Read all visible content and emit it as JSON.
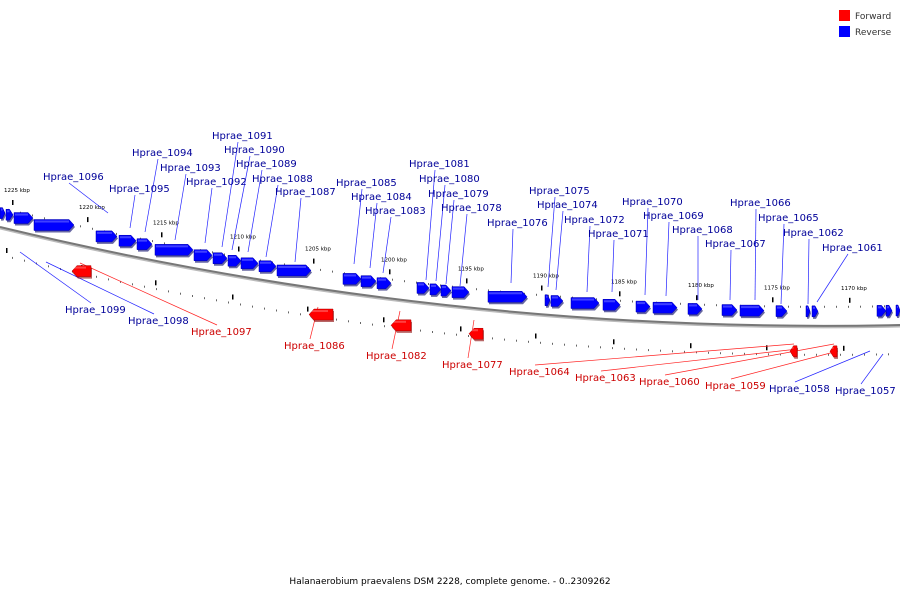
{
  "caption": "Halanaerobium praevalens DSM 2228, complete genome. - 0..2309262",
  "legend": {
    "forward": {
      "label": "Forward",
      "color": "#ff0000"
    },
    "reverse": {
      "label": "Reverse",
      "color": "#0000ff"
    }
  },
  "colors": {
    "forward_text": "#cc0000",
    "reverse_text": "#000099",
    "backbone": "#888888"
  },
  "scale": {
    "unit": "kbp",
    "ticks": [
      "1225 kbp",
      "1220 kbp",
      "1215 kbp",
      "1210 kbp",
      "1205 kbp",
      "1200 kbp",
      "1195 kbp",
      "1190 kbp",
      "1185 kbp",
      "1180 kbp",
      "1175 kbp",
      "1170 kbp"
    ]
  },
  "genes": [
    {
      "name": "Hprae_1099",
      "strand": "reverse"
    },
    {
      "name": "Hprae_1098",
      "strand": "reverse"
    },
    {
      "name": "Hprae_1097",
      "strand": "forward"
    },
    {
      "name": "Hprae_1096",
      "strand": "reverse"
    },
    {
      "name": "Hprae_1095",
      "strand": "reverse"
    },
    {
      "name": "Hprae_1094",
      "strand": "reverse"
    },
    {
      "name": "Hprae_1093",
      "strand": "reverse"
    },
    {
      "name": "Hprae_1092",
      "strand": "reverse"
    },
    {
      "name": "Hprae_1091",
      "strand": "reverse"
    },
    {
      "name": "Hprae_1090",
      "strand": "reverse"
    },
    {
      "name": "Hprae_1089",
      "strand": "reverse"
    },
    {
      "name": "Hprae_1088",
      "strand": "reverse"
    },
    {
      "name": "Hprae_1087",
      "strand": "reverse"
    },
    {
      "name": "Hprae_1086",
      "strand": "forward"
    },
    {
      "name": "Hprae_1085",
      "strand": "reverse"
    },
    {
      "name": "Hprae_1084",
      "strand": "reverse"
    },
    {
      "name": "Hprae_1083",
      "strand": "reverse"
    },
    {
      "name": "Hprae_1082",
      "strand": "forward"
    },
    {
      "name": "Hprae_1081",
      "strand": "reverse"
    },
    {
      "name": "Hprae_1080",
      "strand": "reverse"
    },
    {
      "name": "Hprae_1079",
      "strand": "reverse"
    },
    {
      "name": "Hprae_1078",
      "strand": "reverse"
    },
    {
      "name": "Hprae_1077",
      "strand": "forward"
    },
    {
      "name": "Hprae_1076",
      "strand": "reverse"
    },
    {
      "name": "Hprae_1075",
      "strand": "reverse"
    },
    {
      "name": "Hprae_1074",
      "strand": "reverse"
    },
    {
      "name": "Hprae_1072",
      "strand": "reverse"
    },
    {
      "name": "Hprae_1071",
      "strand": "reverse"
    },
    {
      "name": "Hprae_1070",
      "strand": "reverse"
    },
    {
      "name": "Hprae_1069",
      "strand": "reverse"
    },
    {
      "name": "Hprae_1068",
      "strand": "reverse"
    },
    {
      "name": "Hprae_1067",
      "strand": "reverse"
    },
    {
      "name": "Hprae_1066",
      "strand": "reverse"
    },
    {
      "name": "Hprae_1065",
      "strand": "reverse"
    },
    {
      "name": "Hprae_1064",
      "strand": "forward"
    },
    {
      "name": "Hprae_1063",
      "strand": "forward"
    },
    {
      "name": "Hprae_1062",
      "strand": "reverse"
    },
    {
      "name": "Hprae_1061",
      "strand": "reverse"
    },
    {
      "name": "Hprae_1060",
      "strand": "forward"
    },
    {
      "name": "Hprae_1059",
      "strand": "forward"
    },
    {
      "name": "Hprae_1058",
      "strand": "reverse"
    },
    {
      "name": "Hprae_1057",
      "strand": "reverse"
    }
  ]
}
